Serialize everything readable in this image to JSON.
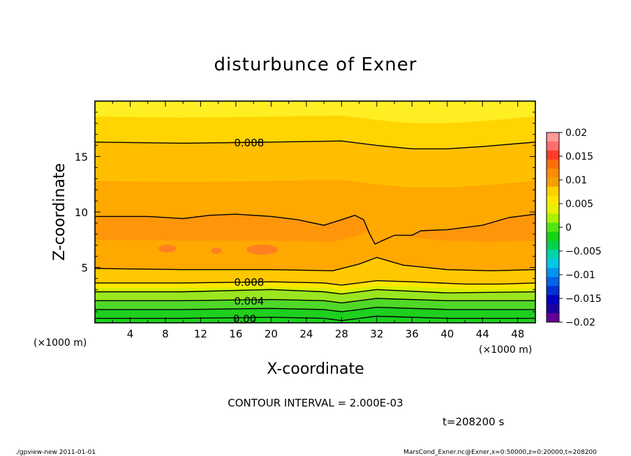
{
  "chart_data": {
    "type": "contour",
    "title": "disturbunce of Exner",
    "xlabel": "X-coordinate",
    "ylabel": "Z-coordinate",
    "x_unit": "(×1000 m)",
    "z_unit": "(×1000 m)",
    "xlim": [
      0,
      50
    ],
    "ylim": [
      0,
      20
    ],
    "x_ticks": [
      4,
      8,
      12,
      16,
      20,
      24,
      28,
      32,
      36,
      40,
      44,
      48
    ],
    "y_ticks": [
      5,
      10,
      15
    ],
    "contour_interval_text": "CONTOUR INTERVAL = 2.000E-03",
    "time_text": "t=208200 s",
    "contour_labels": [
      {
        "text": "0.008",
        "x": 17.5,
        "z": 16.3
      },
      {
        "text": "0.008",
        "x": 17.5,
        "z": 3.7
      },
      {
        "text": "0.004",
        "x": 17.5,
        "z": 2.0
      },
      {
        "text": "0.00",
        "x": 17.0,
        "z": 0.4
      }
    ],
    "contours": [
      {
        "level": 0.008,
        "points": [
          [
            0,
            16.3
          ],
          [
            10,
            16.2
          ],
          [
            20,
            16.3
          ],
          [
            28,
            16.4
          ],
          [
            32,
            16.0
          ],
          [
            36,
            15.7
          ],
          [
            40,
            15.7
          ],
          [
            44,
            15.9
          ],
          [
            50,
            16.3
          ]
        ]
      },
      {
        "level": 0.01,
        "points": [
          [
            0,
            9.6
          ],
          [
            6,
            9.6
          ],
          [
            10,
            9.4
          ],
          [
            13,
            9.7
          ],
          [
            16,
            9.8
          ],
          [
            20,
            9.6
          ],
          [
            23,
            9.3
          ],
          [
            26,
            8.8
          ],
          [
            28,
            9.3
          ],
          [
            29.5,
            9.7
          ],
          [
            30.5,
            9.3
          ],
          [
            31.2,
            8.0
          ],
          [
            31.8,
            7.1
          ],
          [
            32.6,
            7.4
          ],
          [
            34,
            7.9
          ],
          [
            36,
            7.9
          ],
          [
            37,
            8.3
          ],
          [
            40,
            8.4
          ],
          [
            44,
            8.8
          ],
          [
            47,
            9.5
          ],
          [
            50,
            9.8
          ]
        ]
      },
      {
        "level": 0.01,
        "points": [
          [
            0,
            4.9
          ],
          [
            10,
            4.8
          ],
          [
            20,
            4.8
          ],
          [
            27,
            4.7
          ],
          [
            30,
            5.3
          ],
          [
            32,
            5.9
          ],
          [
            35,
            5.2
          ],
          [
            40,
            4.8
          ],
          [
            45,
            4.7
          ],
          [
            50,
            4.8
          ]
        ]
      },
      {
        "level": 0.008,
        "points": [
          [
            0,
            3.6
          ],
          [
            10,
            3.6
          ],
          [
            20,
            3.7
          ],
          [
            26,
            3.6
          ],
          [
            28,
            3.4
          ],
          [
            32,
            3.8
          ],
          [
            36,
            3.7
          ],
          [
            42,
            3.5
          ],
          [
            46,
            3.5
          ],
          [
            50,
            3.6
          ]
        ]
      },
      {
        "level": 0.006,
        "points": [
          [
            0,
            2.8
          ],
          [
            10,
            2.8
          ],
          [
            20,
            3.0
          ],
          [
            26,
            2.8
          ],
          [
            28,
            2.6
          ],
          [
            32,
            3.0
          ],
          [
            40,
            2.7
          ],
          [
            50,
            2.8
          ]
        ]
      },
      {
        "level": 0.004,
        "points": [
          [
            0,
            2.0
          ],
          [
            10,
            2.0
          ],
          [
            20,
            2.1
          ],
          [
            26,
            2.0
          ],
          [
            28,
            1.8
          ],
          [
            32,
            2.2
          ],
          [
            40,
            2.0
          ],
          [
            50,
            2.0
          ]
        ]
      },
      {
        "level": 0.002,
        "points": [
          [
            0,
            1.2
          ],
          [
            10,
            1.2
          ],
          [
            20,
            1.3
          ],
          [
            26,
            1.2
          ],
          [
            28,
            1.0
          ],
          [
            32,
            1.4
          ],
          [
            40,
            1.2
          ],
          [
            50,
            1.2
          ]
        ]
      },
      {
        "level": 0.0,
        "points": [
          [
            0,
            0.4
          ],
          [
            10,
            0.4
          ],
          [
            20,
            0.5
          ],
          [
            26,
            0.4
          ],
          [
            28,
            0.2
          ],
          [
            32,
            0.6
          ],
          [
            40,
            0.4
          ],
          [
            50,
            0.4
          ]
        ]
      }
    ],
    "colorbar": {
      "ticks": [
        "0.02",
        "0.015",
        "0.01",
        "0.005",
        "0",
        "−0.005",
        "−0.01",
        "−0.015",
        "−0.02"
      ],
      "colors": [
        "#ff9a9a",
        "#ff6e6e",
        "#ff3c28",
        "#ff6e0a",
        "#ff8c00",
        "#f5a000",
        "#ffd000",
        "#ffe600",
        "#e6f000",
        "#aaf000",
        "#50e614",
        "#14d214",
        "#00d250",
        "#00d2aa",
        "#00c8e6",
        "#0096f0",
        "#0064e6",
        "#0032d2",
        "#0000be",
        "#1e00a0",
        "#640096"
      ]
    },
    "colors": {
      "background": "#ffffff",
      "bands_top_to_bottom": [
        "#ffee22",
        "#ffd400",
        "#ffbf00",
        "#ffa800",
        "#ff960a",
        "#ffa800",
        "#ffc800",
        "#ffe600",
        "#d8f000",
        "#9ae61e",
        "#50d828",
        "#1ecf1e"
      ]
    }
  },
  "footer": {
    "left": "./gpview-new   2011-01-01",
    "right": "MarsCond_Exner.nc@Exner,x=0:50000,z=0:20000,t=208200"
  }
}
